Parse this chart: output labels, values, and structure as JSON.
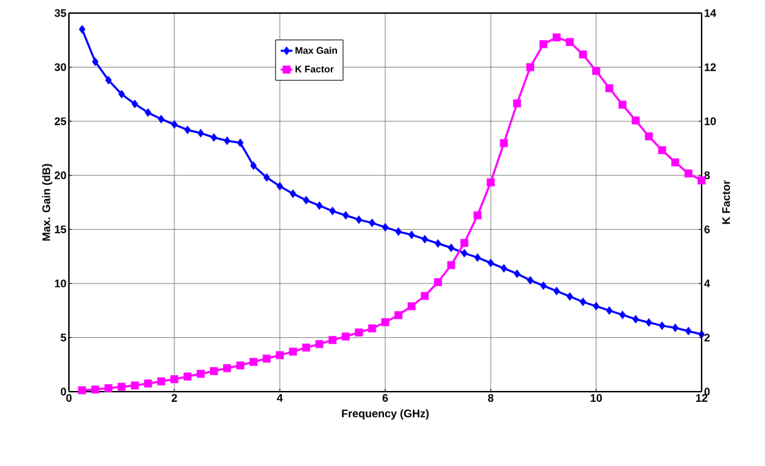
{
  "chart_data": {
    "type": "line",
    "xlabel": "Frequency (GHz)",
    "ylabel": "Max. Gain (dB)",
    "y2label": "K Factor",
    "x": [
      0.25,
      0.5,
      0.75,
      1.0,
      1.25,
      1.5,
      1.75,
      2.0,
      2.25,
      2.5,
      2.75,
      3.0,
      3.25,
      3.5,
      3.75,
      4.0,
      4.25,
      4.5,
      4.75,
      5.0,
      5.25,
      5.5,
      5.75,
      6.0,
      6.25,
      6.5,
      6.75,
      7.0,
      7.25,
      7.5,
      7.75,
      8.0,
      8.25,
      8.5,
      8.75,
      9.0,
      9.25,
      9.5,
      9.75,
      10.0,
      10.25,
      10.5,
      10.75,
      11.0,
      11.25,
      11.5,
      11.75,
      12.0
    ],
    "series": [
      {
        "name": "Max Gain",
        "color": "#0000ff",
        "marker": "diamond",
        "values": [
          33.5,
          30.5,
          28.8,
          27.5,
          26.6,
          25.8,
          25.2,
          24.7,
          24.2,
          23.9,
          23.5,
          23.2,
          23.0,
          20.9,
          19.8,
          19.0,
          18.3,
          17.7,
          17.2,
          16.7,
          16.3,
          15.9,
          15.6,
          15.2,
          14.8,
          14.5,
          14.1,
          13.7,
          13.3,
          12.8,
          12.4,
          11.9,
          11.4,
          10.9,
          10.3,
          9.8,
          9.3,
          8.8,
          8.3,
          7.9,
          7.5,
          7.1,
          6.7,
          6.4,
          6.1,
          5.9,
          5.6,
          5.3
        ]
      },
      {
        "name": "K Factor",
        "color": "#ff00ff",
        "marker": "square",
        "axis": "y2",
        "values": [
          0.05,
          0.08,
          0.13,
          0.18,
          0.23,
          0.3,
          0.38,
          0.46,
          0.56,
          0.66,
          0.76,
          0.87,
          0.97,
          1.1,
          1.22,
          1.35,
          1.48,
          1.63,
          1.76,
          1.91,
          2.04,
          2.19,
          2.34,
          2.57,
          2.83,
          3.16,
          3.54,
          4.05,
          4.68,
          5.5,
          6.52,
          7.74,
          9.19,
          10.66,
          12.0,
          12.85,
          13.1,
          12.93,
          12.47,
          11.86,
          11.22,
          10.61,
          10.03,
          9.44,
          8.93,
          8.48,
          8.07,
          7.81
        ]
      }
    ],
    "xlim": [
      0,
      12
    ],
    "xticks": [
      0,
      2,
      4,
      6,
      8,
      10,
      12
    ],
    "ylim": [
      0,
      35
    ],
    "yticks": [
      0,
      5,
      10,
      15,
      20,
      25,
      30,
      35
    ],
    "y2lim": [
      0,
      14
    ],
    "y2ticks": [
      0,
      2,
      4,
      6,
      8,
      10,
      12,
      14
    ],
    "grid": true,
    "legend": "top",
    "line_style": "solid"
  }
}
